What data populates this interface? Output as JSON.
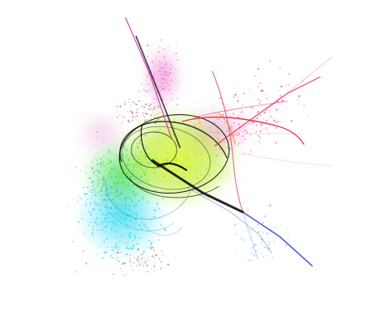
{
  "image": {
    "subject": "fractal-flame-attractor",
    "background_color": "#ffffff",
    "palette": {
      "magenta": "#e040c8",
      "pink": "#ff70c8",
      "red": "#e01838",
      "orange": "#ff8020",
      "yellow_green": "#c8f000",
      "green": "#40e040",
      "cyan": "#20d0f0",
      "sky": "#40b0ff",
      "blue": "#2040e0",
      "dark_core": "#101010",
      "mauve": "#b07090"
    }
  }
}
